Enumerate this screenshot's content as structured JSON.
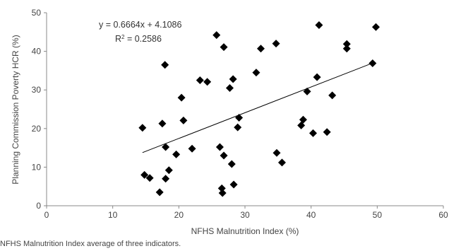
{
  "chart_data": {
    "type": "scatter",
    "xlabel": "NFHS Malnutrition Index (%)",
    "ylabel": "Planning Commission Poverty HCR (%)",
    "xlim": [
      0,
      60
    ],
    "ylim": [
      0,
      50
    ],
    "x_ticks": [
      "0",
      "10",
      "20",
      "30",
      "40",
      "50",
      "60"
    ],
    "y_ticks": [
      "0",
      "10",
      "20",
      "30",
      "40",
      "50"
    ],
    "grid": false,
    "marker_color": "#000000",
    "trendline": {
      "slope": 0.6664,
      "intercept": 4.1086,
      "x_range": [
        14.5,
        49.5
      ],
      "equation": "y = 0.6664x + 4.1086",
      "r_squared_label": "R",
      "r_squared_power": "2",
      "r_squared_value": " = 0.2586"
    },
    "points": [
      {
        "x": 14.5,
        "y": 20.2
      },
      {
        "x": 14.8,
        "y": 8.0
      },
      {
        "x": 15.6,
        "y": 7.2
      },
      {
        "x": 17.1,
        "y": 3.5
      },
      {
        "x": 17.5,
        "y": 21.3
      },
      {
        "x": 17.9,
        "y": 36.5
      },
      {
        "x": 18.0,
        "y": 15.2
      },
      {
        "x": 18.0,
        "y": 7.0
      },
      {
        "x": 18.5,
        "y": 9.2
      },
      {
        "x": 19.6,
        "y": 13.3
      },
      {
        "x": 20.4,
        "y": 28.0
      },
      {
        "x": 20.7,
        "y": 22.1
      },
      {
        "x": 22.0,
        "y": 14.8
      },
      {
        "x": 23.2,
        "y": 32.5
      },
      {
        "x": 24.3,
        "y": 32.1
      },
      {
        "x": 25.7,
        "y": 44.2
      },
      {
        "x": 26.2,
        "y": 15.2
      },
      {
        "x": 26.5,
        "y": 4.5
      },
      {
        "x": 26.6,
        "y": 3.3
      },
      {
        "x": 26.8,
        "y": 41.1
      },
      {
        "x": 26.8,
        "y": 13.0
      },
      {
        "x": 27.7,
        "y": 30.5
      },
      {
        "x": 28.0,
        "y": 10.8
      },
      {
        "x": 28.2,
        "y": 32.8
      },
      {
        "x": 28.3,
        "y": 5.5
      },
      {
        "x": 28.9,
        "y": 20.3
      },
      {
        "x": 29.1,
        "y": 22.8
      },
      {
        "x": 31.7,
        "y": 34.5
      },
      {
        "x": 32.4,
        "y": 40.7
      },
      {
        "x": 34.7,
        "y": 42.0
      },
      {
        "x": 34.8,
        "y": 13.7
      },
      {
        "x": 35.6,
        "y": 11.2
      },
      {
        "x": 38.5,
        "y": 20.8
      },
      {
        "x": 38.8,
        "y": 22.3
      },
      {
        "x": 39.4,
        "y": 29.6
      },
      {
        "x": 40.3,
        "y": 18.8
      },
      {
        "x": 40.9,
        "y": 33.3
      },
      {
        "x": 41.2,
        "y": 46.8
      },
      {
        "x": 42.4,
        "y": 19.1
      },
      {
        "x": 43.2,
        "y": 28.6
      },
      {
        "x": 45.4,
        "y": 41.9
      },
      {
        "x": 45.4,
        "y": 40.7
      },
      {
        "x": 49.3,
        "y": 36.9
      },
      {
        "x": 49.8,
        "y": 46.3
      }
    ]
  },
  "footnote": "NFHS Malnutrition Index average of three indicators."
}
